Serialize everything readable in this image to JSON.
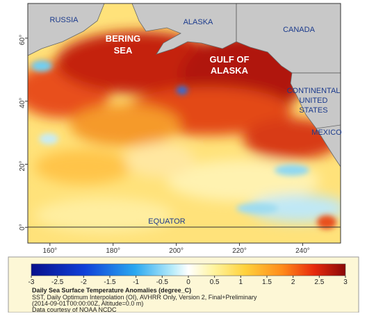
{
  "map": {
    "lat_axis": {
      "lim": [
        -5,
        71
      ],
      "ticks": [
        {
          "value": 0,
          "label": "0°"
        },
        {
          "value": 20,
          "label": "20°"
        },
        {
          "value": 40,
          "label": "40°"
        },
        {
          "value": 60,
          "label": "60°"
        }
      ]
    },
    "lon_axis": {
      "lim": [
        153,
        252
      ],
      "ticks": [
        {
          "value": 160,
          "label": "160°"
        },
        {
          "value": 180,
          "label": "180°"
        },
        {
          "value": 200,
          "label": "200°"
        },
        {
          "value": 220,
          "label": "220°"
        },
        {
          "value": 240,
          "label": "240°"
        }
      ]
    },
    "labels": [
      {
        "lines": [
          "RUSSIA"
        ]
      },
      {
        "lines": [
          "ALASKA"
        ]
      },
      {
        "lines": [
          "CANADA"
        ]
      },
      {
        "lines": [
          "BERING",
          "SEA"
        ]
      },
      {
        "lines": [
          "GULF OF",
          "ALASKA"
        ]
      },
      {
        "lines": [
          "CONTINENTAL",
          "UNITED",
          "STATES"
        ]
      },
      {
        "lines": [
          "MEXICO"
        ]
      },
      {
        "lines": [
          "EQUATOR"
        ]
      }
    ]
  },
  "colorbar": {
    "lim": [
      -3,
      3
    ],
    "ticks": [
      -3,
      -2.5,
      -2,
      -1.5,
      -1,
      -0.5,
      0,
      0.5,
      1,
      1.5,
      2,
      2.5,
      3
    ]
  },
  "caption": {
    "title": "Daily Sea Surface Temperature Anomalies (degree_C)",
    "lines": [
      "SST, Daily Optimum Interpolation (OI), AVHRR Only, Version 2, Final+Preliminary",
      "(2014-09-01T00:00:00Z, Altitude=0.0 m)",
      "Data courtesy of NOAA NCDC"
    ]
  }
}
